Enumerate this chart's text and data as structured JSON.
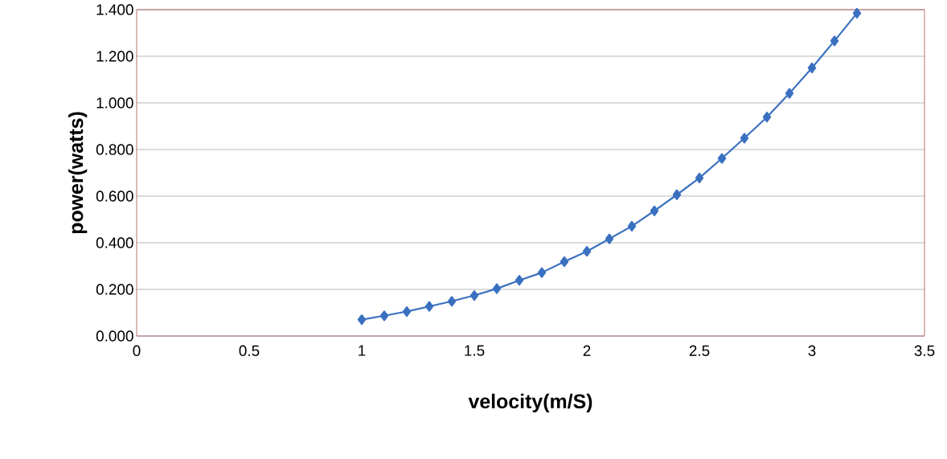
{
  "chart_data": {
    "type": "line",
    "xlabel": "velocity(m/S)",
    "ylabel": "power(watts)",
    "x": [
      1.0,
      1.1,
      1.2,
      1.3,
      1.4,
      1.5,
      1.6,
      1.7,
      1.8,
      1.9,
      2.0,
      2.1,
      2.2,
      2.3,
      2.4,
      2.5,
      2.6,
      2.7,
      2.8,
      2.9,
      3.0,
      3.1,
      3.2
    ],
    "series": [
      {
        "color": "#3a70c0",
        "values": [
          0.07,
          0.087,
          0.105,
          0.127,
          0.149,
          0.174,
          0.203,
          0.239,
          0.272,
          0.319,
          0.363,
          0.417,
          0.471,
          0.537,
          0.606,
          0.678,
          0.762,
          0.849,
          0.939,
          1.041,
          1.15,
          1.266,
          1.385
        ]
      }
    ],
    "xlim": [
      0,
      3.5
    ],
    "xticks": [
      0,
      0.5,
      1,
      1.5,
      2,
      2.5,
      3,
      3.5
    ],
    "ylim": [
      0,
      1.4
    ],
    "yticks": [
      {
        "value": 0,
        "label": "0.000"
      },
      {
        "value": 0.2,
        "label": "0.200"
      },
      {
        "value": 0.4,
        "label": "0.400"
      },
      {
        "value": 0.6,
        "label": "0.600"
      },
      {
        "value": 0.8,
        "label": "0.800"
      },
      {
        "value": 1.0,
        "label": "1.000"
      },
      {
        "value": 1.2,
        "label": "1.200"
      },
      {
        "value": 1.4,
        "label": "1.400"
      }
    ],
    "grid": "y",
    "marker": "diamond",
    "line_style": "solid"
  }
}
